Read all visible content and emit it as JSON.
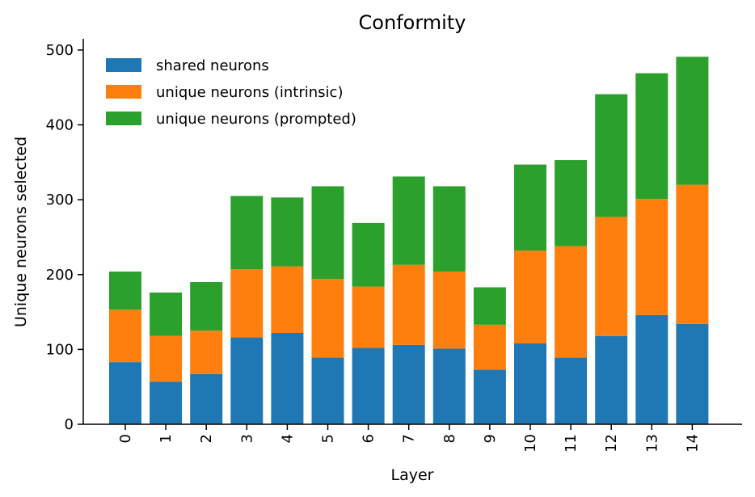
{
  "chart_data": {
    "type": "bar",
    "stacked": true,
    "title": "Conformity",
    "xlabel": "Layer",
    "ylabel": "Unique neurons selected",
    "categories": [
      "0",
      "1",
      "2",
      "3",
      "4",
      "5",
      "6",
      "7",
      "8",
      "9",
      "10",
      "11",
      "12",
      "13",
      "14"
    ],
    "series": [
      {
        "name": "shared neurons",
        "color": "#1f77b4",
        "values": [
          83,
          57,
          67,
          116,
          122,
          89,
          102,
          106,
          101,
          73,
          108,
          89,
          118,
          146,
          134
        ]
      },
      {
        "name": "unique neurons (intrinsic)",
        "color": "#ff7f0e",
        "values": [
          70,
          61,
          58,
          91,
          89,
          105,
          82,
          107,
          103,
          60,
          124,
          149,
          159,
          155,
          186
        ]
      },
      {
        "name": "unique neurons (prompted)",
        "color": "#2ca02c",
        "values": [
          51,
          58,
          65,
          98,
          92,
          124,
          85,
          118,
          114,
          50,
          115,
          115,
          164,
          168,
          171
        ]
      }
    ],
    "yticks": [
      0,
      100,
      200,
      300,
      400,
      500
    ],
    "ylim": [
      0,
      515
    ],
    "legend_position": "top-left",
    "grid": false
  }
}
